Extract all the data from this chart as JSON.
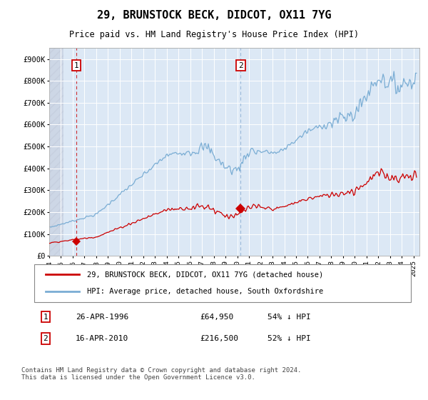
{
  "title": "29, BRUNSTOCK BECK, DIDCOT, OX11 7YG",
  "subtitle": "Price paid vs. HM Land Registry's House Price Index (HPI)",
  "ylim": [
    0,
    950000
  ],
  "yticks": [
    0,
    100000,
    200000,
    300000,
    400000,
    500000,
    600000,
    700000,
    800000,
    900000
  ],
  "ytick_labels": [
    "£0",
    "£100K",
    "£200K",
    "£300K",
    "£400K",
    "£500K",
    "£600K",
    "£700K",
    "£800K",
    "£900K"
  ],
  "xlim_start": 1994.0,
  "xlim_end": 2025.5,
  "hpi_color": "#7aadd4",
  "price_color": "#cc0000",
  "sale1_date": 1996.32,
  "sale1_price": 64950,
  "sale1_label": "1",
  "sale2_date": 2010.29,
  "sale2_price": 216500,
  "sale2_label": "2",
  "legend_price_label": "29, BRUNSTOCK BECK, DIDCOT, OX11 7YG (detached house)",
  "legend_hpi_label": "HPI: Average price, detached house, South Oxfordshire",
  "footer": "Contains HM Land Registry data © Crown copyright and database right 2024.\nThis data is licensed under the Open Government Licence v3.0.",
  "plot_bg": "#dce8f5"
}
